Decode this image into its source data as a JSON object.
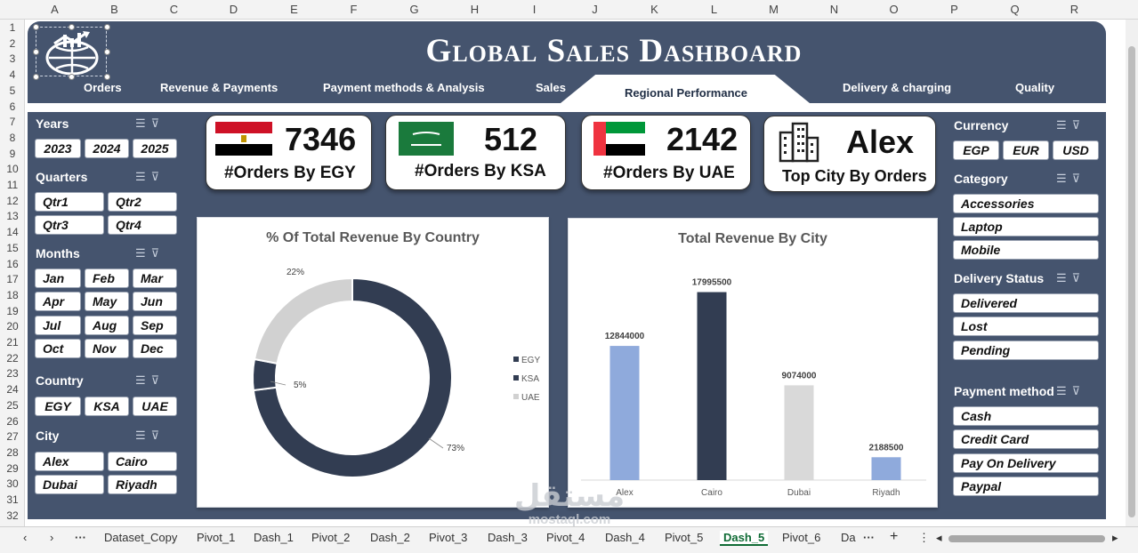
{
  "columns": [
    "A",
    "B",
    "C",
    "D",
    "E",
    "F",
    "G",
    "H",
    "I",
    "J",
    "K",
    "L",
    "M",
    "N",
    "O",
    "P",
    "Q",
    "R"
  ],
  "rows": [
    "1",
    "2",
    "3",
    "4",
    "5",
    "6",
    "7",
    "8",
    "9",
    "10",
    "11",
    "12",
    "13",
    "14",
    "15",
    "16",
    "17",
    "18",
    "19",
    "20",
    "21",
    "22",
    "23",
    "24",
    "25",
    "26",
    "27",
    "28",
    "29",
    "30",
    "31",
    "32"
  ],
  "header": {
    "title": "Global Sales Dashboard"
  },
  "nav": [
    "Orders",
    "Revenue & Payments",
    "Payment methods & Analysis",
    "Sales",
    "Regional Performance",
    "Delivery & charging",
    "Quality"
  ],
  "left_slicers": {
    "years": {
      "title": "Years",
      "items": [
        "2023",
        "2024",
        "2025"
      ]
    },
    "quarters": {
      "title": "Quarters",
      "items": [
        "Qtr1",
        "Qtr2",
        "Qtr3",
        "Qtr4"
      ]
    },
    "months": {
      "title": "Months",
      "items": [
        "Jan",
        "Feb",
        "Mar",
        "Apr",
        "May",
        "Jun",
        "Jul",
        "Aug",
        "Sep",
        "Oct",
        "Nov",
        "Dec"
      ]
    },
    "country": {
      "title": "Country",
      "items": [
        "EGY",
        "KSA",
        "UAE"
      ]
    },
    "city": {
      "title": "City",
      "items": [
        "Alex",
        "Cairo",
        "Dubai",
        "Riyadh"
      ]
    }
  },
  "right_slicers": {
    "currency": {
      "title": "Currency",
      "items": [
        "EGP",
        "EUR",
        "USD"
      ]
    },
    "category": {
      "title": "Category",
      "items": [
        "Accessories",
        "Laptop",
        "Mobile"
      ]
    },
    "delivery": {
      "title": "Delivery Status",
      "items": [
        "Delivered",
        "Lost",
        "Pending"
      ]
    },
    "payment": {
      "title": "Payment method",
      "items": [
        "Cash",
        "Credit Card",
        "Pay On Delivery",
        "Paypal"
      ]
    }
  },
  "kpis": [
    {
      "value": "7346",
      "label": "#Orders By EGY",
      "icon": "egypt-flag-icon"
    },
    {
      "value": "512",
      "label": "#Orders By KSA",
      "icon": "saudi-flag-icon"
    },
    {
      "value": "2142",
      "label": "#Orders By UAE",
      "icon": "uae-flag-icon"
    },
    {
      "value": "Alex",
      "label": "Top City By Orders",
      "icon": "buildings-icon"
    }
  ],
  "chart_data": [
    {
      "type": "pie",
      "title": "% Of Total Revenue By Country",
      "series": [
        {
          "values": [
            73,
            5,
            22
          ]
        }
      ],
      "categories": [
        "EGY",
        "KSA",
        "UAE"
      ],
      "data_labels": [
        "73%",
        "5%",
        "22%"
      ],
      "colors": [
        "#323d52",
        "#323d52",
        "#d1d1d1"
      ],
      "legend": "right"
    },
    {
      "type": "bar",
      "title": "Total Revenue By City",
      "categories": [
        "Alex",
        "Cairo",
        "Dubai",
        "Riyadh"
      ],
      "values": [
        12844000,
        17995500,
        9074000,
        2188500
      ],
      "data_labels": [
        "12844000",
        "17995500",
        "9074000",
        "2188500"
      ],
      "colors": [
        "#8faadc",
        "#323d52",
        "#d9d9d9",
        "#8faadc"
      ],
      "ylim": [
        0,
        20000000
      ],
      "grid": false
    }
  ],
  "sheet_tabs": [
    "Dataset_Copy",
    "Pivot_1",
    "Dash_1",
    "Pivot_2",
    "Dash_2",
    "Pivot_3",
    "Dash_3",
    "Pivot_4",
    "Dash_4",
    "Pivot_5",
    "Dash_5",
    "Pivot_6",
    "Da"
  ],
  "active_tab": "Dash_5",
  "watermark": "مستقل mostaql.com"
}
